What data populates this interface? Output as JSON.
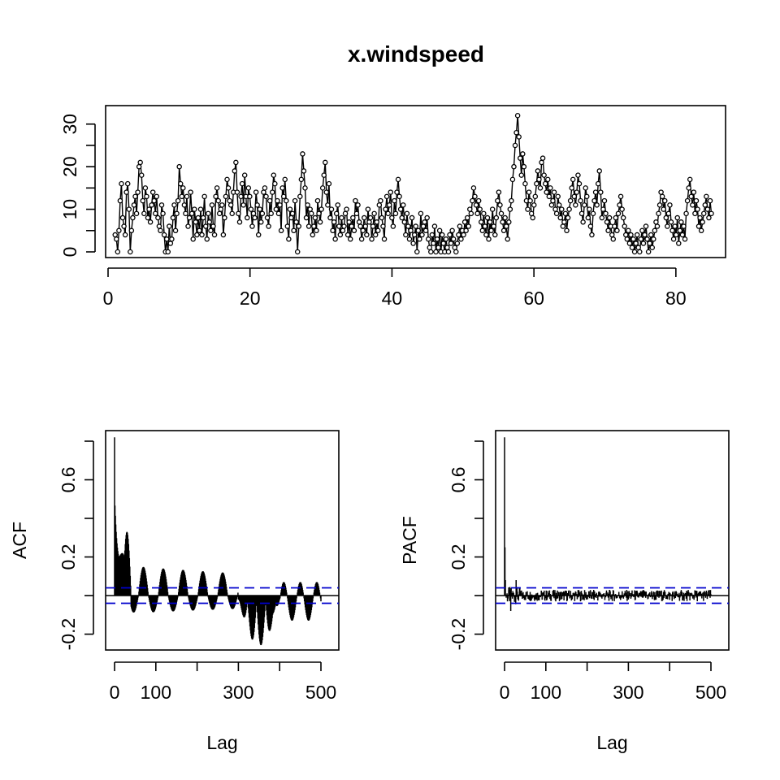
{
  "figure": {
    "title": "x.windspeed"
  },
  "chart_data": [
    {
      "type": "line",
      "name_key": "timeseries",
      "title": "x.windspeed",
      "xlabel": "",
      "ylabel": "",
      "xlim": [
        0,
        87
      ],
      "ylim": [
        0,
        33
      ],
      "x_ticks": [
        0,
        20,
        40,
        60,
        80
      ],
      "y_ticks": [
        0,
        5,
        10,
        15,
        20,
        25,
        30
      ],
      "y_tick_labels": [
        "0",
        "10",
        "20",
        "30"
      ],
      "y_tick_labeled_values": [
        0,
        10,
        20,
        30
      ],
      "series_color": "#000000",
      "point_markers": "open circles",
      "x_start": 1,
      "x_step": 0.2,
      "values": [
        4,
        3,
        0,
        5,
        12,
        16,
        8,
        6,
        4,
        14,
        16,
        10,
        0,
        5,
        8,
        11,
        13,
        9,
        14,
        20,
        21,
        18,
        12,
        9,
        15,
        13,
        8,
        10,
        7,
        11,
        14,
        12,
        9,
        13,
        8,
        6,
        5,
        11,
        9,
        4,
        0,
        3,
        0,
        6,
        2,
        3,
        8,
        11,
        5,
        9,
        12,
        20,
        16,
        13,
        15,
        11,
        9,
        13,
        6,
        8,
        14,
        9,
        3,
        10,
        7,
        4,
        8,
        5,
        10,
        4,
        8,
        13,
        6,
        3,
        9,
        7,
        5,
        11,
        6,
        4,
        13,
        15,
        12,
        9,
        10,
        11,
        4,
        8,
        13,
        17,
        15,
        12,
        11,
        9,
        14,
        19,
        21,
        14,
        9,
        7,
        13,
        16,
        11,
        18,
        13,
        8,
        15,
        13,
        10,
        6,
        9,
        8,
        14,
        11,
        4,
        10,
        7,
        9,
        14,
        15,
        13,
        8,
        6,
        12,
        9,
        14,
        18,
        16,
        10,
        12,
        9,
        11,
        5,
        15,
        13,
        17,
        12,
        6,
        3,
        10,
        8,
        9,
        5,
        12,
        7,
        0,
        6,
        13,
        17,
        23,
        19,
        15,
        8,
        11,
        6,
        10,
        9,
        4,
        6,
        8,
        5,
        12,
        9,
        7,
        10,
        15,
        18,
        21,
        14,
        11,
        16,
        8,
        10,
        5,
        7,
        3,
        9,
        11,
        6,
        4,
        8,
        5,
        6,
        9,
        10,
        4,
        7,
        3,
        6,
        8,
        5,
        12,
        9,
        11,
        7,
        6,
        3,
        5,
        8,
        6,
        4,
        10,
        7,
        8,
        3,
        6,
        9,
        4,
        7,
        5,
        11,
        12,
        8,
        6,
        3,
        10,
        13,
        9,
        11,
        14,
        8,
        6,
        12,
        9,
        14,
        17,
        13,
        10,
        8,
        11,
        7,
        4,
        9,
        6,
        3,
        5,
        8,
        2,
        4,
        6,
        0,
        5,
        3,
        9,
        4,
        6,
        7,
        5,
        8,
        3,
        1,
        0,
        4,
        2,
        6,
        0,
        3,
        1,
        5,
        0,
        4,
        2,
        0,
        3,
        1,
        0,
        4,
        2,
        5,
        3,
        1,
        0,
        2,
        4,
        6,
        3,
        5,
        4,
        7,
        5,
        8,
        6,
        10,
        9,
        12,
        15,
        13,
        11,
        9,
        12,
        10,
        7,
        5,
        9,
        6,
        4,
        8,
        3,
        7,
        5,
        10,
        6,
        4,
        8,
        12,
        14,
        11,
        9,
        7,
        5,
        8,
        6,
        3,
        7,
        10,
        12,
        17,
        20,
        25,
        28,
        32,
        27,
        22,
        18,
        23,
        20,
        16,
        12,
        10,
        14,
        12,
        9,
        8,
        11,
        13,
        16,
        19,
        17,
        15,
        21,
        22,
        18,
        16,
        14,
        17,
        13,
        15,
        11,
        12,
        14,
        10,
        9,
        13,
        11,
        8,
        10,
        6,
        7,
        9,
        5,
        8,
        10,
        12,
        15,
        17,
        13,
        11,
        14,
        18,
        16,
        12,
        9,
        7,
        11,
        15,
        13,
        8,
        10,
        6,
        4,
        9,
        12,
        14,
        11,
        16,
        19,
        14,
        8,
        10,
        12,
        9,
        7,
        5,
        8,
        6,
        4,
        3,
        6,
        8,
        5,
        9,
        11,
        13,
        10,
        8,
        6,
        4,
        3,
        5,
        2,
        4,
        1,
        3,
        0,
        2,
        4,
        1,
        0,
        3,
        5,
        2,
        4,
        6,
        3,
        0,
        2,
        4,
        1,
        3,
        5,
        7,
        6,
        9,
        11,
        14,
        13,
        10,
        12,
        8,
        6,
        9,
        11,
        7,
        5,
        3,
        6,
        4,
        8,
        2,
        5,
        7,
        4,
        6,
        3,
        9,
        12,
        15,
        17,
        13,
        11,
        14,
        9,
        12,
        10,
        6,
        8,
        5,
        7,
        9,
        11,
        13,
        10,
        8,
        12,
        9
      ]
    },
    {
      "type": "bar",
      "name_key": "acf",
      "xlabel": "Lag",
      "ylabel": "ACF",
      "xlim": [
        -10,
        520
      ],
      "ylim": [
        -0.3,
        0.84
      ],
      "x_ticks": [
        0,
        100,
        200,
        300,
        400,
        500
      ],
      "x_tick_labels": [
        "0",
        "100",
        "",
        "300",
        "",
        "500"
      ],
      "y_ticks": [
        -0.2,
        0,
        0.2,
        0.4,
        0.6,
        0.8
      ],
      "y_tick_labels": [
        "-0.2",
        "",
        "0.2",
        "",
        "0.6",
        ""
      ],
      "ci": 0.04,
      "ci_color": "#0000CD",
      "lags_max": 500
    },
    {
      "type": "bar",
      "name_key": "pacf",
      "xlabel": "Lag",
      "ylabel": "PACF",
      "xlim": [
        -10,
        520
      ],
      "ylim": [
        -0.3,
        0.84
      ],
      "x_ticks": [
        0,
        100,
        200,
        300,
        400,
        500
      ],
      "x_tick_labels": [
        "0",
        "100",
        "",
        "300",
        "",
        "500"
      ],
      "y_ticks": [
        -0.2,
        0,
        0.2,
        0.4,
        0.6,
        0.8
      ],
      "y_tick_labels": [
        "-0.2",
        "",
        "0.2",
        "",
        "0.6",
        ""
      ],
      "ci": 0.04,
      "ci_color": "#0000CD",
      "lags_max": 500
    }
  ]
}
